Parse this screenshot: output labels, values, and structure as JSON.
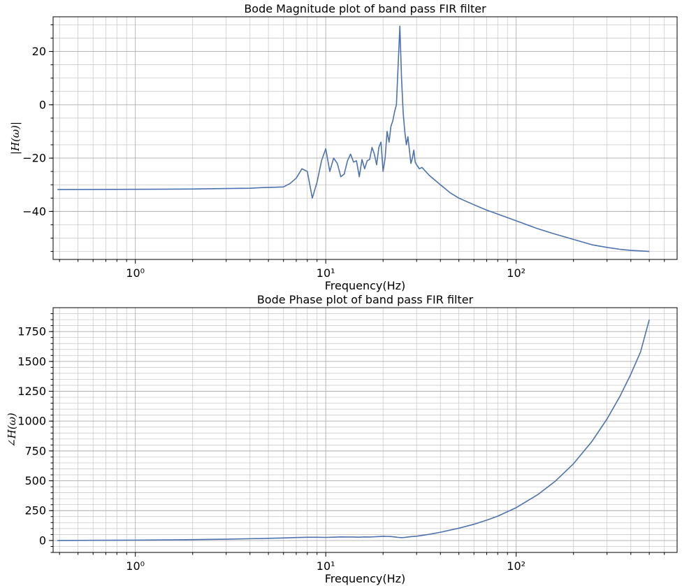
{
  "chart_data": [
    {
      "type": "line",
      "title": "Bode Magnitude plot of band pass FIR filter",
      "xlabel": "Frequency(Hz)",
      "ylabel": "|H(ω)|",
      "xscale": "log",
      "xlim": [
        0.37,
        700
      ],
      "ylim": [
        -58,
        33
      ],
      "grid": true,
      "color": "#4c72b0",
      "xticks": [
        {
          "value": 1,
          "label": "10⁰"
        },
        {
          "value": 10,
          "label": "10¹"
        },
        {
          "value": 100,
          "label": "10²"
        }
      ],
      "yticks": [
        {
          "value": -40,
          "label": "−40"
        },
        {
          "value": -20,
          "label": "−20"
        },
        {
          "value": 0,
          "label": "0"
        },
        {
          "value": 20,
          "label": "20"
        }
      ],
      "series": [
        {
          "x": [
            0.39,
            1,
            2,
            3,
            4,
            4.5,
            5,
            5.5,
            6,
            6.5,
            7,
            7.5,
            8,
            8.5,
            9,
            9.5,
            10,
            10.5,
            11,
            11.5,
            12,
            12.5,
            13,
            13.5,
            14,
            14.5,
            15,
            15.5,
            16,
            16.5,
            17,
            17.5,
            18,
            18.5,
            19,
            19.5,
            20,
            20.5,
            21,
            21.5,
            22,
            22.5,
            23,
            23.5,
            24,
            24.5,
            25,
            25.5,
            26,
            26.5,
            27,
            27.5,
            28,
            28.5,
            29,
            29.5,
            30,
            31,
            32,
            35,
            40,
            45,
            50,
            60,
            70,
            80,
            100,
            130,
            160,
            200,
            250,
            300,
            350,
            400,
            450,
            500
          ],
          "y": [
            -31.8,
            -31.7,
            -31.6,
            -31.4,
            -31.3,
            -31.1,
            -31.0,
            -30.9,
            -30.8,
            -29.5,
            -27.5,
            -24.0,
            -25.0,
            -35.0,
            -29.0,
            -21.0,
            -16.5,
            -25.0,
            -20.0,
            -22.0,
            -27.0,
            -26.0,
            -21.0,
            -18.5,
            -21.5,
            -21.0,
            -27.0,
            -20.5,
            -24.0,
            -21.0,
            -20.5,
            -16.0,
            -18.5,
            -22.5,
            -16.0,
            -14.0,
            -25.0,
            -20.0,
            -10.0,
            -14.0,
            -8.0,
            -6.0,
            -2.5,
            0.0,
            15.0,
            29.5,
            10.0,
            -3.0,
            -10.0,
            -15.0,
            -12.0,
            -17.0,
            -22.0,
            -20.0,
            -17.0,
            -21.5,
            -22.5,
            -24.0,
            -23.5,
            -26.5,
            -30.0,
            -33.0,
            -35.0,
            -37.5,
            -39.5,
            -41.0,
            -43.5,
            -46.5,
            -48.5,
            -50.5,
            -52.5,
            -53.5,
            -54.2,
            -54.6,
            -54.8,
            -55.0
          ]
        }
      ]
    },
    {
      "type": "line",
      "title": "Bode Phase plot of band pass FIR filter",
      "xlabel": "Frequency(Hz)",
      "ylabel": "∠H(ω)",
      "xscale": "log",
      "xlim": [
        0.37,
        700
      ],
      "ylim": [
        -100,
        1950
      ],
      "grid": true,
      "color": "#4c72b0",
      "xticks": [
        {
          "value": 1,
          "label": "10⁰"
        },
        {
          "value": 10,
          "label": "10¹"
        },
        {
          "value": 100,
          "label": "10²"
        }
      ],
      "yticks": [
        {
          "value": 0,
          "label": "0"
        },
        {
          "value": 250,
          "label": "250"
        },
        {
          "value": 500,
          "label": "500"
        },
        {
          "value": 750,
          "label": "750"
        },
        {
          "value": 1000,
          "label": "1000"
        },
        {
          "value": 1250,
          "label": "1250"
        },
        {
          "value": 1500,
          "label": "1500"
        },
        {
          "value": 1750,
          "label": "1750"
        }
      ],
      "series": [
        {
          "x": [
            0.39,
            1,
            2,
            3,
            4,
            5,
            6,
            7,
            8,
            9,
            10,
            11,
            12,
            13,
            14,
            15,
            16,
            17,
            18,
            19,
            20,
            21,
            22,
            23,
            24,
            25,
            26,
            27,
            28,
            30,
            35,
            40,
            50,
            60,
            70,
            80,
            100,
            130,
            160,
            200,
            250,
            300,
            350,
            400,
            450,
            500
          ],
          "y": [
            0,
            3,
            7,
            11,
            15,
            18,
            21,
            25,
            27,
            27,
            26,
            28,
            30,
            29,
            29,
            28,
            30,
            29,
            31,
            33,
            35,
            34,
            33,
            30,
            26,
            24,
            26,
            29,
            32,
            36,
            52,
            69,
            103,
            136,
            170,
            204,
            275,
            385,
            495,
            643,
            830,
            1018,
            1205,
            1393,
            1580,
            1850
          ]
        }
      ]
    }
  ]
}
